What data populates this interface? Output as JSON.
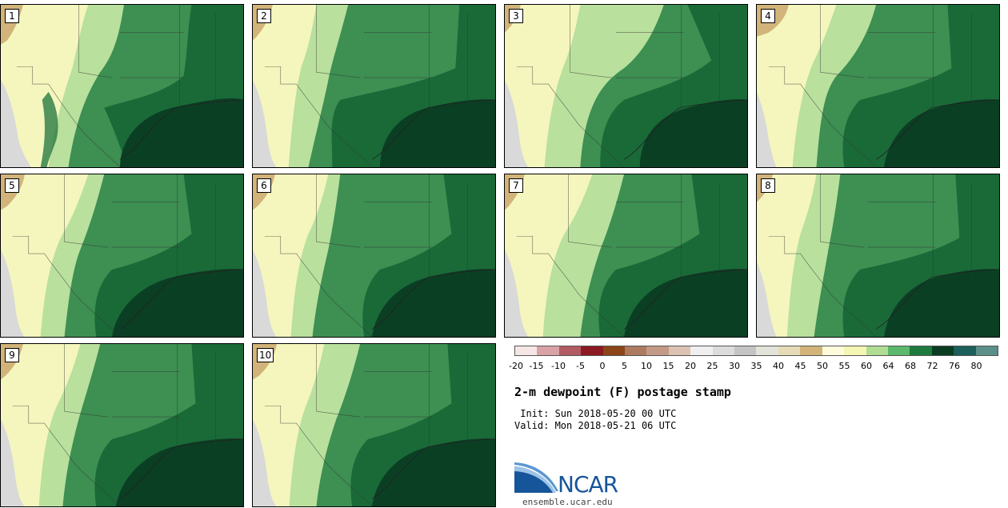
{
  "panels": [
    "1",
    "2",
    "3",
    "4",
    "5",
    "6",
    "7",
    "8",
    "9",
    "10"
  ],
  "colorbar": {
    "colors": [
      "#f5e6e6",
      "#d9a2a6",
      "#b15b62",
      "#8b1a22",
      "#8c4518",
      "#ad7b60",
      "#c39a85",
      "#dcc2b3",
      "#efefef",
      "#dcdcdc",
      "#c4c4c4",
      "#e3e3da",
      "#e5dbb6",
      "#d2b47a",
      "#fefbdb",
      "#f4f6b3",
      "#b0dc94",
      "#5cb86c",
      "#1f7a3f",
      "#0a3d22",
      "#1c5f5b",
      "#5b8f8a"
    ],
    "tick_labels": [
      "-20",
      "-15",
      "-10",
      "-5",
      "0",
      "5",
      "10",
      "15",
      "20",
      "25",
      "30",
      "35",
      "40",
      "45",
      "50",
      "55",
      "60",
      "64",
      "68",
      "72",
      "76",
      "80"
    ]
  },
  "info": {
    "title": "2-m dewpoint (F) postage stamp",
    "init": " Init: Sun 2018-05-20 00 UTC",
    "valid": "Valid: Mon 2018-05-21 06 UTC"
  },
  "logo": {
    "text": "NCAR",
    "url": "ensemble.ucar.edu"
  }
}
